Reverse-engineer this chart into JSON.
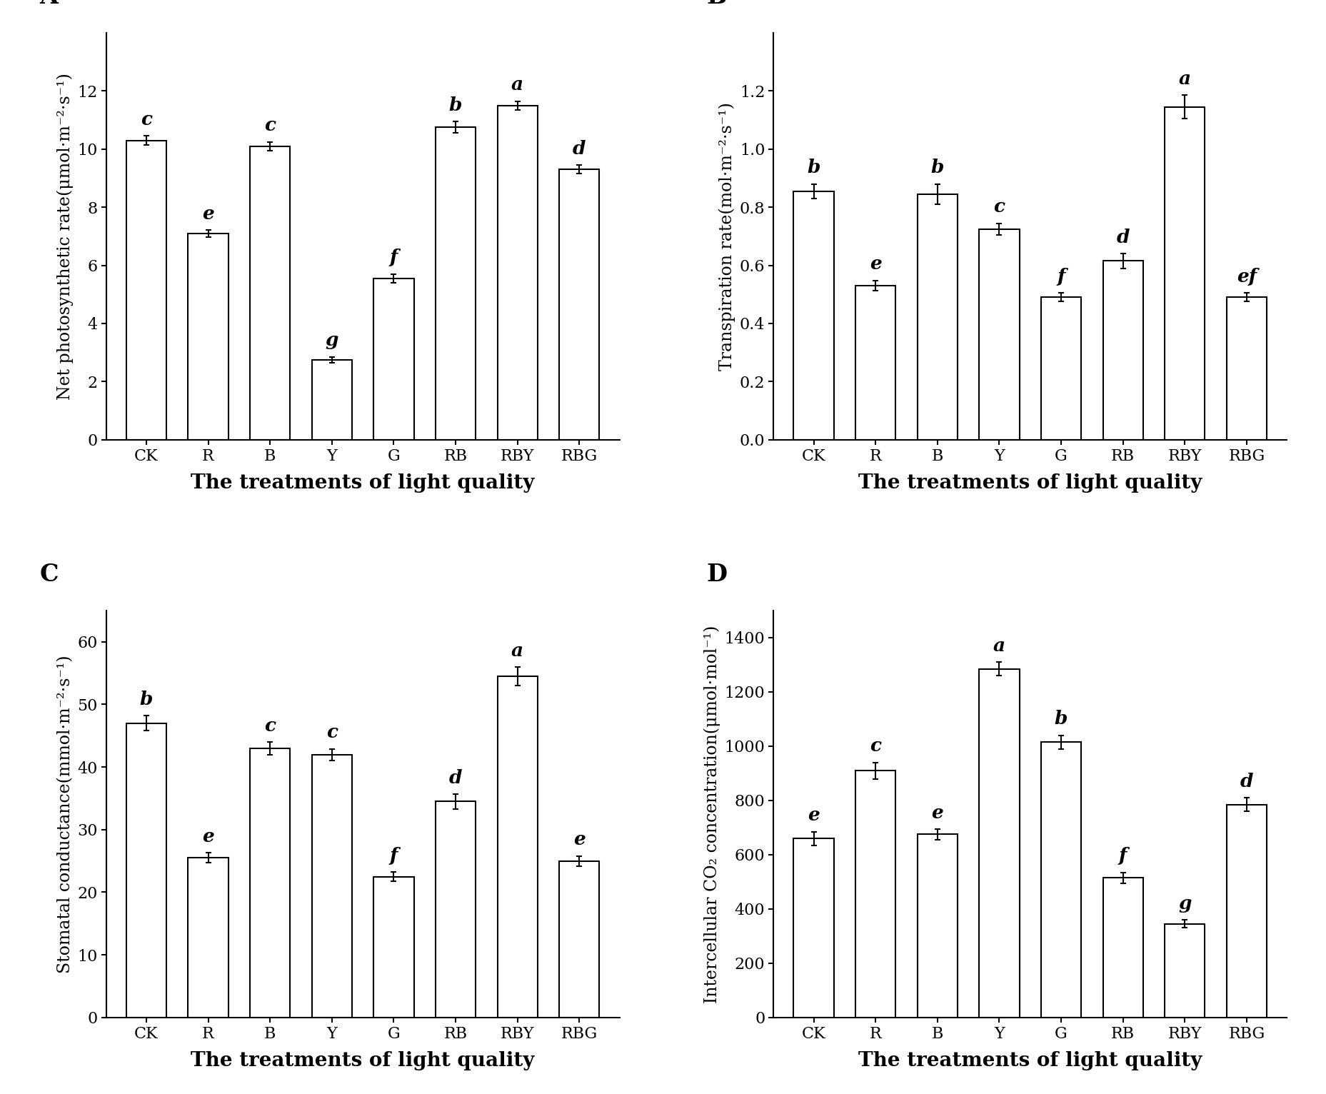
{
  "categories": [
    "CK",
    "R",
    "B",
    "Y",
    "G",
    "RB",
    "RBY",
    "RBG"
  ],
  "panels": {
    "A": {
      "label": "A",
      "ylabel": "Net photosynthetic rate(μmol·m⁻²·s⁻¹)",
      "xlabel": "The treatments of light quality",
      "values": [
        10.3,
        7.1,
        10.1,
        2.75,
        5.55,
        10.75,
        11.5,
        9.3
      ],
      "errors": [
        0.15,
        0.12,
        0.15,
        0.1,
        0.15,
        0.2,
        0.15,
        0.15
      ],
      "letters": [
        "c",
        "e",
        "c",
        "g",
        "f",
        "b",
        "a",
        "d"
      ],
      "ylim": [
        0,
        14
      ],
      "yticks": [
        0,
        2,
        4,
        6,
        8,
        10,
        12
      ]
    },
    "B": {
      "label": "B",
      "ylabel": "Transpiration rate(mol·m⁻²·s⁻¹)",
      "xlabel": "The treatments of light quality",
      "values": [
        0.855,
        0.53,
        0.845,
        0.725,
        0.49,
        0.615,
        1.145,
        0.49
      ],
      "errors": [
        0.025,
        0.018,
        0.035,
        0.02,
        0.015,
        0.025,
        0.04,
        0.015
      ],
      "letters": [
        "b",
        "e",
        "b",
        "c",
        "f",
        "d",
        "a",
        "ef"
      ],
      "ylim": [
        0.0,
        1.4
      ],
      "yticks": [
        0.0,
        0.2,
        0.4,
        0.6,
        0.8,
        1.0,
        1.2
      ]
    },
    "C": {
      "label": "C",
      "ylabel": "Stomatal conductance(mmol·m⁻²·s⁻¹)",
      "xlabel": "The treatments of light quality",
      "values": [
        47.0,
        25.5,
        43.0,
        42.0,
        22.5,
        34.5,
        54.5,
        25.0
      ],
      "errors": [
        1.2,
        0.8,
        1.0,
        0.9,
        0.7,
        1.2,
        1.5,
        0.8
      ],
      "letters": [
        "b",
        "e",
        "c",
        "c",
        "f",
        "d",
        "a",
        "e"
      ],
      "ylim": [
        0,
        65
      ],
      "yticks": [
        0,
        10,
        20,
        30,
        40,
        50,
        60
      ]
    },
    "D": {
      "label": "D",
      "ylabel": "Intercellular CO₂ concentration(μmol·mol⁻¹)",
      "xlabel": "The treatments of light quality",
      "values": [
        660,
        910,
        675,
        1285,
        1015,
        515,
        345,
        785
      ],
      "errors": [
        25,
        30,
        20,
        25,
        25,
        20,
        15,
        25
      ],
      "letters": [
        "e",
        "c",
        "e",
        "a",
        "b",
        "f",
        "g",
        "d"
      ],
      "ylim": [
        0,
        1500
      ],
      "yticks": [
        0,
        200,
        400,
        600,
        800,
        1000,
        1200,
        1400
      ]
    }
  },
  "bar_color": "white",
  "bar_edgecolor": "black",
  "bar_linewidth": 1.5,
  "bar_width": 0.65,
  "font_family": "DejaVu Serif",
  "ylabel_fontsize": 17,
  "tick_fontsize": 16,
  "letter_fontsize": 19,
  "panel_label_fontsize": 24,
  "xlabel_fontsize": 20,
  "background_color": "white"
}
